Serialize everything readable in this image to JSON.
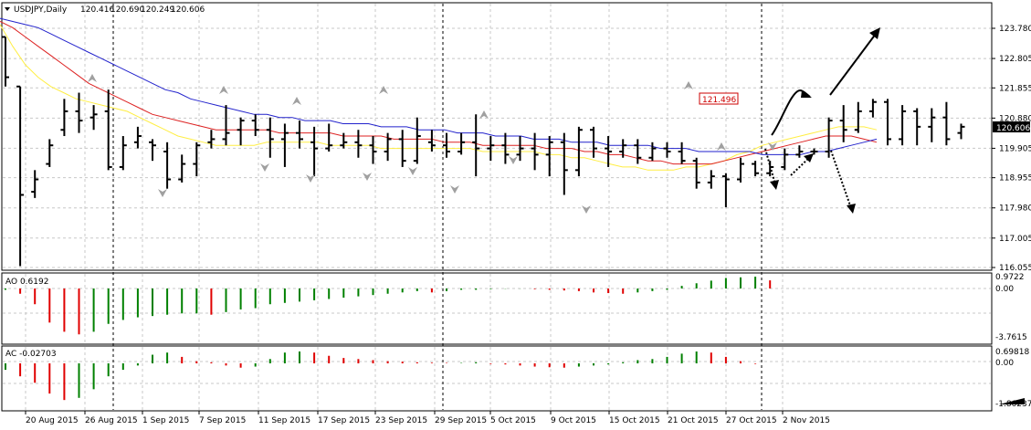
{
  "main": {
    "symbol_label": "USDJPY,Daily",
    "ohlc": {
      "open": "120.416",
      "high": "120.690",
      "low": "120.249",
      "close": "120.606"
    },
    "yaxis_ticks": [
      "123.780",
      "122.805",
      "121.855",
      "120.880",
      "119.905",
      "118.955",
      "117.980",
      "117.005",
      "116.055"
    ],
    "last_price": "120.606",
    "annotation_label": "121.496",
    "colors": {
      "bars": "#000000",
      "ma_yellow": "#ffee44",
      "ma_red": "#dd2222",
      "ma_blue": "#2222cc",
      "last_price_box": "#000000",
      "annotation": "#cc0000"
    }
  },
  "ao": {
    "label": "AO 0.6192",
    "ticks": [
      "0.9722",
      "0.00",
      "-3.7615"
    ],
    "colors": {
      "up": "#008000",
      "down": "#e00000"
    }
  },
  "ac": {
    "label": "AC -0.02703",
    "ticks": [
      "0.69818",
      "0.00",
      "-1.86237"
    ],
    "colors": {
      "up": "#008000",
      "down": "#e00000"
    }
  },
  "xaxis_labels": [
    "20 Aug 2015",
    "26 Aug 2015",
    "1 Sep 2015",
    "7 Sep 2015",
    "11 Sep 2015",
    "17 Sep 2015",
    "23 Sep 2015",
    "29 Sep 2015",
    "5 Oct 2015",
    "9 Oct 2015",
    "15 Oct 2015",
    "21 Oct 2015",
    "27 Oct 2015",
    "2 Nov 2015"
  ],
  "chart_data": [
    {
      "type": "candlestick",
      "title": "USDJPY,Daily",
      "ylim": [
        116.055,
        123.78
      ],
      "series": [
        {
          "name": "ohlc",
          "values": [
            [
              123.5,
              123.5,
              121.9,
              122.2
            ],
            [
              121.9,
              121.9,
              116.1,
              118.4
            ],
            [
              118.5,
              119.2,
              118.3,
              118.9
            ],
            [
              119.4,
              120.2,
              119.3,
              120.0
            ],
            [
              120.5,
              121.5,
              120.3,
              121.1
            ],
            [
              121.1,
              121.7,
              120.4,
              120.8
            ],
            [
              120.9,
              121.3,
              120.5,
              121.0
            ],
            [
              121.1,
              121.8,
              119.2,
              119.3
            ],
            [
              119.3,
              120.3,
              119.2,
              120.0
            ],
            [
              120.1,
              120.6,
              119.9,
              120.3
            ],
            [
              120.1,
              120.2,
              119.5,
              120.0
            ],
            [
              119.8,
              120.1,
              118.6,
              118.9
            ],
            [
              118.9,
              119.7,
              118.8,
              119.4
            ],
            [
              119.4,
              120.1,
              119.0,
              120.0
            ],
            [
              120.1,
              120.5,
              119.9,
              120.2
            ],
            [
              120.2,
              121.3,
              120.0,
              120.4
            ],
            [
              120.5,
              120.9,
              120.0,
              120.8
            ],
            [
              120.8,
              121.0,
              120.3,
              120.5
            ],
            [
              120.5,
              120.9,
              119.6,
              120.2
            ],
            [
              120.2,
              120.7,
              119.3,
              120.4
            ],
            [
              120.4,
              120.8,
              119.9,
              120.2
            ],
            [
              120.1,
              120.6,
              119.0,
              119.9
            ],
            [
              119.9,
              120.7,
              119.8,
              120.0
            ],
            [
              120.0,
              120.4,
              119.9,
              120.1
            ],
            [
              120.1,
              120.5,
              119.6,
              120.0
            ],
            [
              120.0,
              120.3,
              119.4,
              119.8
            ],
            [
              119.8,
              120.4,
              119.5,
              120.2
            ],
            [
              120.2,
              120.5,
              119.3,
              119.5
            ],
            [
              119.5,
              120.9,
              119.4,
              120.3
            ],
            [
              120.1,
              120.5,
              119.8,
              120.0
            ],
            [
              120.0,
              120.4,
              119.6,
              119.8
            ],
            [
              119.8,
              120.4,
              119.7,
              120.1
            ],
            [
              120.1,
              121.0,
              119.0,
              119.9
            ],
            [
              119.9,
              120.3,
              119.5,
              120.0
            ],
            [
              120.0,
              120.4,
              119.4,
              119.7
            ],
            [
              119.7,
              120.3,
              119.5,
              119.9
            ],
            [
              119.9,
              120.4,
              119.2,
              119.7
            ],
            [
              119.7,
              120.3,
              119.0,
              120.1
            ],
            [
              120.1,
              120.4,
              118.4,
              119.2
            ],
            [
              119.2,
              120.6,
              119.0,
              120.5
            ],
            [
              120.5,
              120.6,
              119.6,
              119.9
            ],
            [
              119.9,
              120.3,
              119.3,
              119.8
            ],
            [
              119.8,
              120.2,
              119.6,
              120.0
            ],
            [
              120.0,
              120.2,
              119.4,
              119.6
            ],
            [
              119.6,
              120.1,
              119.5,
              119.9
            ],
            [
              119.9,
              120.1,
              119.6,
              119.8
            ],
            [
              119.8,
              120.1,
              119.4,
              119.5
            ],
            [
              119.5,
              119.6,
              118.6,
              118.8
            ],
            [
              118.8,
              119.2,
              118.6,
              119.0
            ],
            [
              119.0,
              119.1,
              118.0,
              118.9
            ],
            [
              118.9,
              119.6,
              118.8,
              119.4
            ],
            [
              119.4,
              119.5,
              119.0,
              119.1
            ],
            [
              119.1,
              119.5,
              119.0,
              119.3
            ],
            [
              119.3,
              119.9,
              119.2,
              119.7
            ],
            [
              119.7,
              120.0,
              119.6,
              119.8
            ],
            [
              119.8,
              119.9,
              119.7,
              119.8
            ],
            [
              119.8,
              120.9,
              119.6,
              120.8
            ],
            [
              120.8,
              121.3,
              120.1,
              120.5
            ],
            [
              120.5,
              121.4,
              120.4,
              121.1
            ],
            [
              121.1,
              121.5,
              120.9,
              121.4
            ],
            [
              121.4,
              121.5,
              120.0,
              120.2
            ],
            [
              120.2,
              121.3,
              120.0,
              121.1
            ],
            [
              121.1,
              121.2,
              120.0,
              120.6
            ],
            [
              120.6,
              121.2,
              120.1,
              120.9
            ],
            [
              120.9,
              121.4,
              120.0,
              120.2
            ],
            [
              120.4,
              120.7,
              120.2,
              120.6
            ]
          ]
        },
        {
          "name": "MA yellow",
          "values": [
            123.9,
            123.2,
            122.6,
            122.2,
            121.9,
            121.7,
            121.5,
            121.4,
            121.3,
            121.2,
            121.1,
            120.9,
            120.7,
            120.5,
            120.3,
            120.2,
            120.1,
            120.0,
            120.0,
            120.0,
            120.0,
            120.1,
            120.1,
            120.1,
            120.1,
            120.1,
            120.0,
            120.0,
            120.0,
            120.0,
            119.9,
            119.9,
            119.9,
            119.9,
            119.9,
            119.9,
            119.9,
            119.9,
            119.8,
            119.8,
            119.8,
            119.8,
            119.8,
            119.7,
            119.7,
            119.6,
            119.6,
            119.5,
            119.4,
            119.3,
            119.3,
            119.2,
            119.2,
            119.2,
            119.3,
            119.3,
            119.4,
            119.5,
            119.7,
            119.8,
            120.0,
            120.1,
            120.2,
            120.3,
            120.4,
            120.5,
            120.6,
            120.6,
            120.6,
            120.5
          ]
        },
        {
          "name": "MA red",
          "values": [
            124.0,
            123.8,
            123.5,
            123.2,
            122.9,
            122.6,
            122.3,
            122.0,
            121.8,
            121.6,
            121.4,
            121.2,
            121.0,
            120.9,
            120.8,
            120.7,
            120.6,
            120.5,
            120.5,
            120.5,
            120.5,
            120.5,
            120.4,
            120.4,
            120.4,
            120.4,
            120.4,
            120.3,
            120.3,
            120.3,
            120.3,
            120.2,
            120.2,
            120.2,
            120.2,
            120.1,
            120.1,
            120.1,
            120.0,
            120.0,
            120.0,
            120.0,
            120.0,
            119.9,
            119.9,
            119.9,
            119.8,
            119.8,
            119.7,
            119.7,
            119.6,
            119.5,
            119.5,
            119.4,
            119.4,
            119.4,
            119.4,
            119.5,
            119.6,
            119.7,
            119.8,
            119.9,
            120.0,
            120.1,
            120.2,
            120.3,
            120.3,
            120.3,
            120.2,
            120.1
          ]
        },
        {
          "name": "MA blue",
          "values": [
            124.1,
            124.0,
            123.9,
            123.8,
            123.6,
            123.4,
            123.2,
            123.0,
            122.8,
            122.6,
            122.4,
            122.2,
            122.0,
            121.8,
            121.7,
            121.5,
            121.4,
            121.3,
            121.2,
            121.1,
            121.0,
            121.0,
            120.9,
            120.9,
            120.8,
            120.8,
            120.8,
            120.7,
            120.7,
            120.7,
            120.6,
            120.6,
            120.6,
            120.5,
            120.5,
            120.5,
            120.4,
            120.4,
            120.4,
            120.3,
            120.3,
            120.3,
            120.2,
            120.2,
            120.2,
            120.1,
            120.1,
            120.1,
            120.0,
            120.0,
            120.0,
            120.0,
            119.9,
            119.9,
            119.9,
            119.8,
            119.8,
            119.8,
            119.8,
            119.8,
            119.7,
            119.7,
            119.7,
            119.7,
            119.8,
            119.8,
            119.9,
            120.0,
            120.1,
            120.2
          ]
        }
      ]
    },
    {
      "type": "bar",
      "title": "AO 0.6192",
      "ylim": [
        -3.7615,
        0.9722
      ],
      "values": [
        -0.1,
        -0.4,
        -1.2,
        -2.6,
        -3.3,
        -3.5,
        -3.3,
        -2.7,
        -2.4,
        -2.2,
        -2.1,
        -2.0,
        -1.9,
        -1.9,
        -2.0,
        -1.8,
        -1.6,
        -1.5,
        -1.2,
        -1.1,
        -1.0,
        -0.9,
        -0.8,
        -0.7,
        -0.6,
        -0.5,
        -0.4,
        -0.3,
        -0.2,
        -0.3,
        -0.2,
        -0.1,
        -0.1,
        -0.05,
        -0.02,
        -0.01,
        -0.05,
        -0.1,
        -0.15,
        -0.2,
        -0.3,
        -0.35,
        -0.4,
        -0.3,
        -0.2,
        -0.1,
        0.2,
        0.4,
        0.6,
        0.8,
        0.85,
        0.9,
        0.62
      ]
    },
    {
      "type": "bar",
      "title": "AC -0.02703",
      "ylim": [
        -1.86237,
        0.69818
      ],
      "values": [
        -0.3,
        -0.6,
        -0.9,
        -1.4,
        -1.7,
        -1.6,
        -1.2,
        -0.6,
        -0.3,
        -0.1,
        0.4,
        0.5,
        0.3,
        0.1,
        0.05,
        -0.1,
        -0.2,
        -0.15,
        0.2,
        0.5,
        0.55,
        0.5,
        0.35,
        0.25,
        0.2,
        0.15,
        0.1,
        0.08,
        0.05,
        0.03,
        0.02,
        0.02,
        0.05,
        -0.03,
        -0.05,
        -0.1,
        -0.15,
        -0.18,
        -0.2,
        -0.15,
        -0.1,
        -0.05,
        0.05,
        0.15,
        0.2,
        0.3,
        0.45,
        0.55,
        0.5,
        0.3,
        0.1,
        -0.027
      ]
    }
  ]
}
